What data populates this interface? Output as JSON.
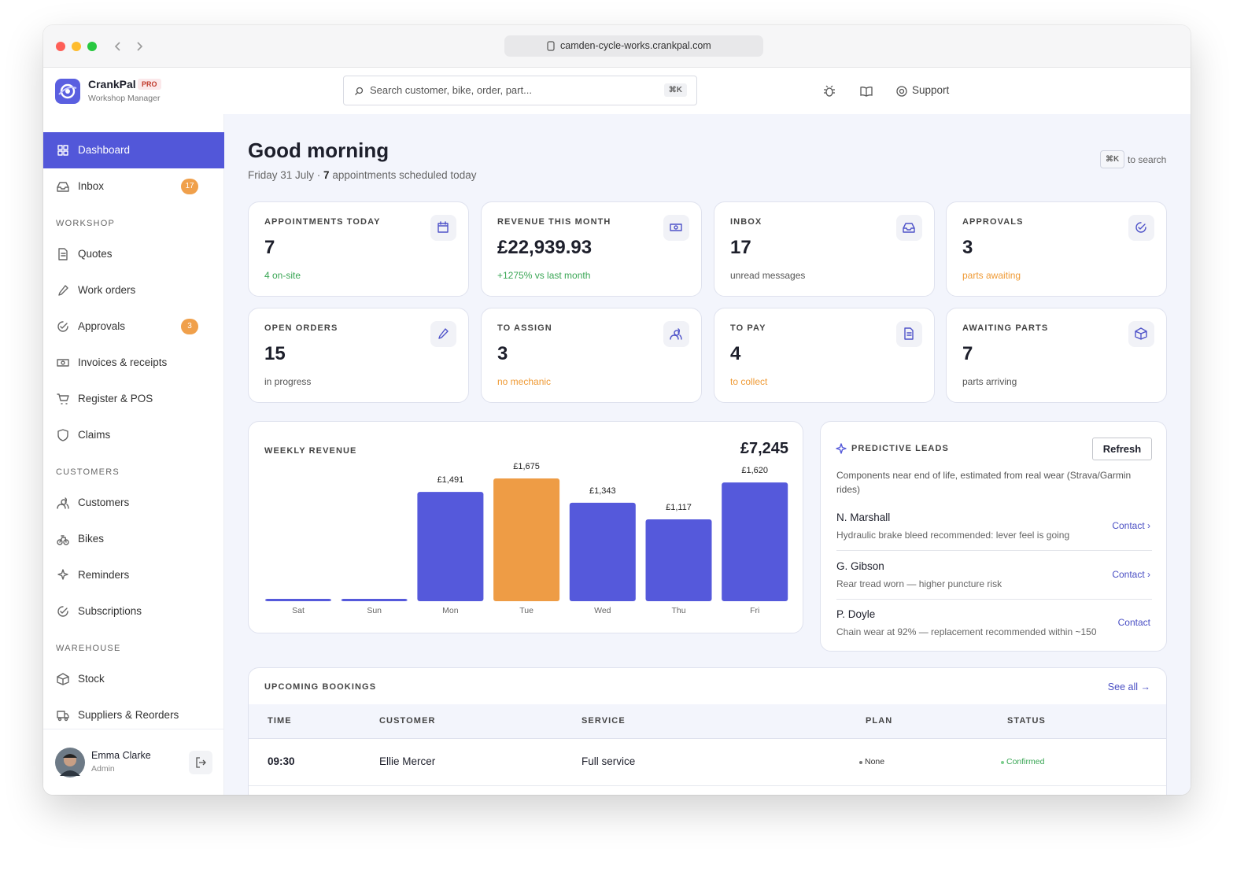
{
  "browser": {
    "url": "camden-cycle-works.crankpal.com"
  },
  "brand": {
    "name": "CrankPal",
    "badge": "PRO",
    "subtitle": "Workshop Manager"
  },
  "search": {
    "placeholder": "Search customer, bike, order, part...",
    "shortcut": "⌘K"
  },
  "toolbar": {
    "support": "Support"
  },
  "nav": {
    "items": [
      {
        "label": "Dashboard",
        "active": true
      },
      {
        "label": "Inbox",
        "badge": 17
      }
    ],
    "sections": [
      {
        "title": "WORKSHOP",
        "items": [
          {
            "label": "Quotes"
          },
          {
            "label": "Work orders"
          },
          {
            "label": "Approvals",
            "badge": 3
          },
          {
            "label": "Invoices & receipts"
          },
          {
            "label": "Register & POS"
          },
          {
            "label": "Claims"
          }
        ]
      },
      {
        "title": "CUSTOMERS",
        "items": [
          {
            "label": "Customers"
          },
          {
            "label": "Bikes"
          },
          {
            "label": "Reminders"
          },
          {
            "label": "Subscriptions"
          }
        ]
      },
      {
        "title": "WAREHOUSE",
        "items": [
          {
            "label": "Stock"
          },
          {
            "label": "Suppliers & Reorders"
          }
        ]
      }
    ]
  },
  "user": {
    "name": "Emma Clarke",
    "role": "Admin"
  },
  "header": {
    "title": "Good morning",
    "subtitle_prefix": "Friday 31 July ·",
    "appointments": 7,
    "subtitle_suffix": "appointments scheduled today",
    "hint_key": "⌘K",
    "hint_text": "to search"
  },
  "stats": [
    {
      "label": "APPOINTMENTS TODAY",
      "value": 7,
      "note": "4 on-site",
      "note_color": "#3aa655"
    },
    {
      "label": "REVENUE THIS MONTH",
      "value": "£22,939.93",
      "note": "+1275% vs last month",
      "note_color": "#3aa655"
    },
    {
      "label": "INBOX",
      "value": 17,
      "note": "unread messages",
      "note_color": "#555"
    },
    {
      "label": "APPROVALS",
      "value": 3,
      "note": "parts awaiting",
      "note_color": "#ef9a35"
    },
    {
      "label": "OPEN ORDERS",
      "value": 15,
      "note": "in progress",
      "note_color": "#555"
    },
    {
      "label": "TO ASSIGN",
      "value": 3,
      "note": "no mechanic",
      "note_color": "#ef9a35"
    },
    {
      "label": "TO PAY",
      "value": 4,
      "note": "to collect",
      "note_color": "#ef9a35"
    },
    {
      "label": "AWAITING PARTS",
      "value": 7,
      "note": "parts arriving",
      "note_color": "#555"
    }
  ],
  "chart_data": {
    "type": "bar",
    "title": "WEEKLY REVENUE",
    "total": "£7,245",
    "categories": [
      "Sat",
      "Sun",
      "Mon",
      "Tue",
      "Wed",
      "Thu",
      "Fri"
    ],
    "values": [
      0,
      0,
      1491,
      1675,
      1343,
      1117,
      1620
    ],
    "value_labels": [
      null,
      null,
      "£1,491",
      "£1,675",
      "£1,343",
      "£1,117",
      "£1,620"
    ],
    "colors": [
      "#5559db",
      "#5559db",
      "#5559db",
      "#ee9c45",
      "#5559db",
      "#5559db",
      "#5559db"
    ]
  },
  "leads": {
    "title": "PREDICTIVE LEADS",
    "button": "Refresh",
    "description": "Components near end of life, estimated from real wear (Strava/Garmin rides)",
    "items": [
      {
        "name": "N. Marshall",
        "detail": "Hydraulic brake bleed recommended: lever feel is going",
        "action": "Contact ›"
      },
      {
        "name": "G. Gibson",
        "detail": "Rear tread worn — higher puncture risk",
        "action": "Contact ›"
      },
      {
        "name": "P. Doyle",
        "detail": "Chain wear at 92% — replacement recommended within ~150",
        "action": "Contact"
      }
    ]
  },
  "bookings": {
    "title": "UPCOMING BOOKINGS",
    "link": "See all →",
    "columns": [
      "TIME",
      "CUSTOMER",
      "SERVICE",
      "PLAN",
      "STATUS"
    ],
    "rows": [
      [
        "09:30",
        "Ellie Mercer",
        "Full service",
        "None",
        "Confirmed"
      ]
    ]
  }
}
